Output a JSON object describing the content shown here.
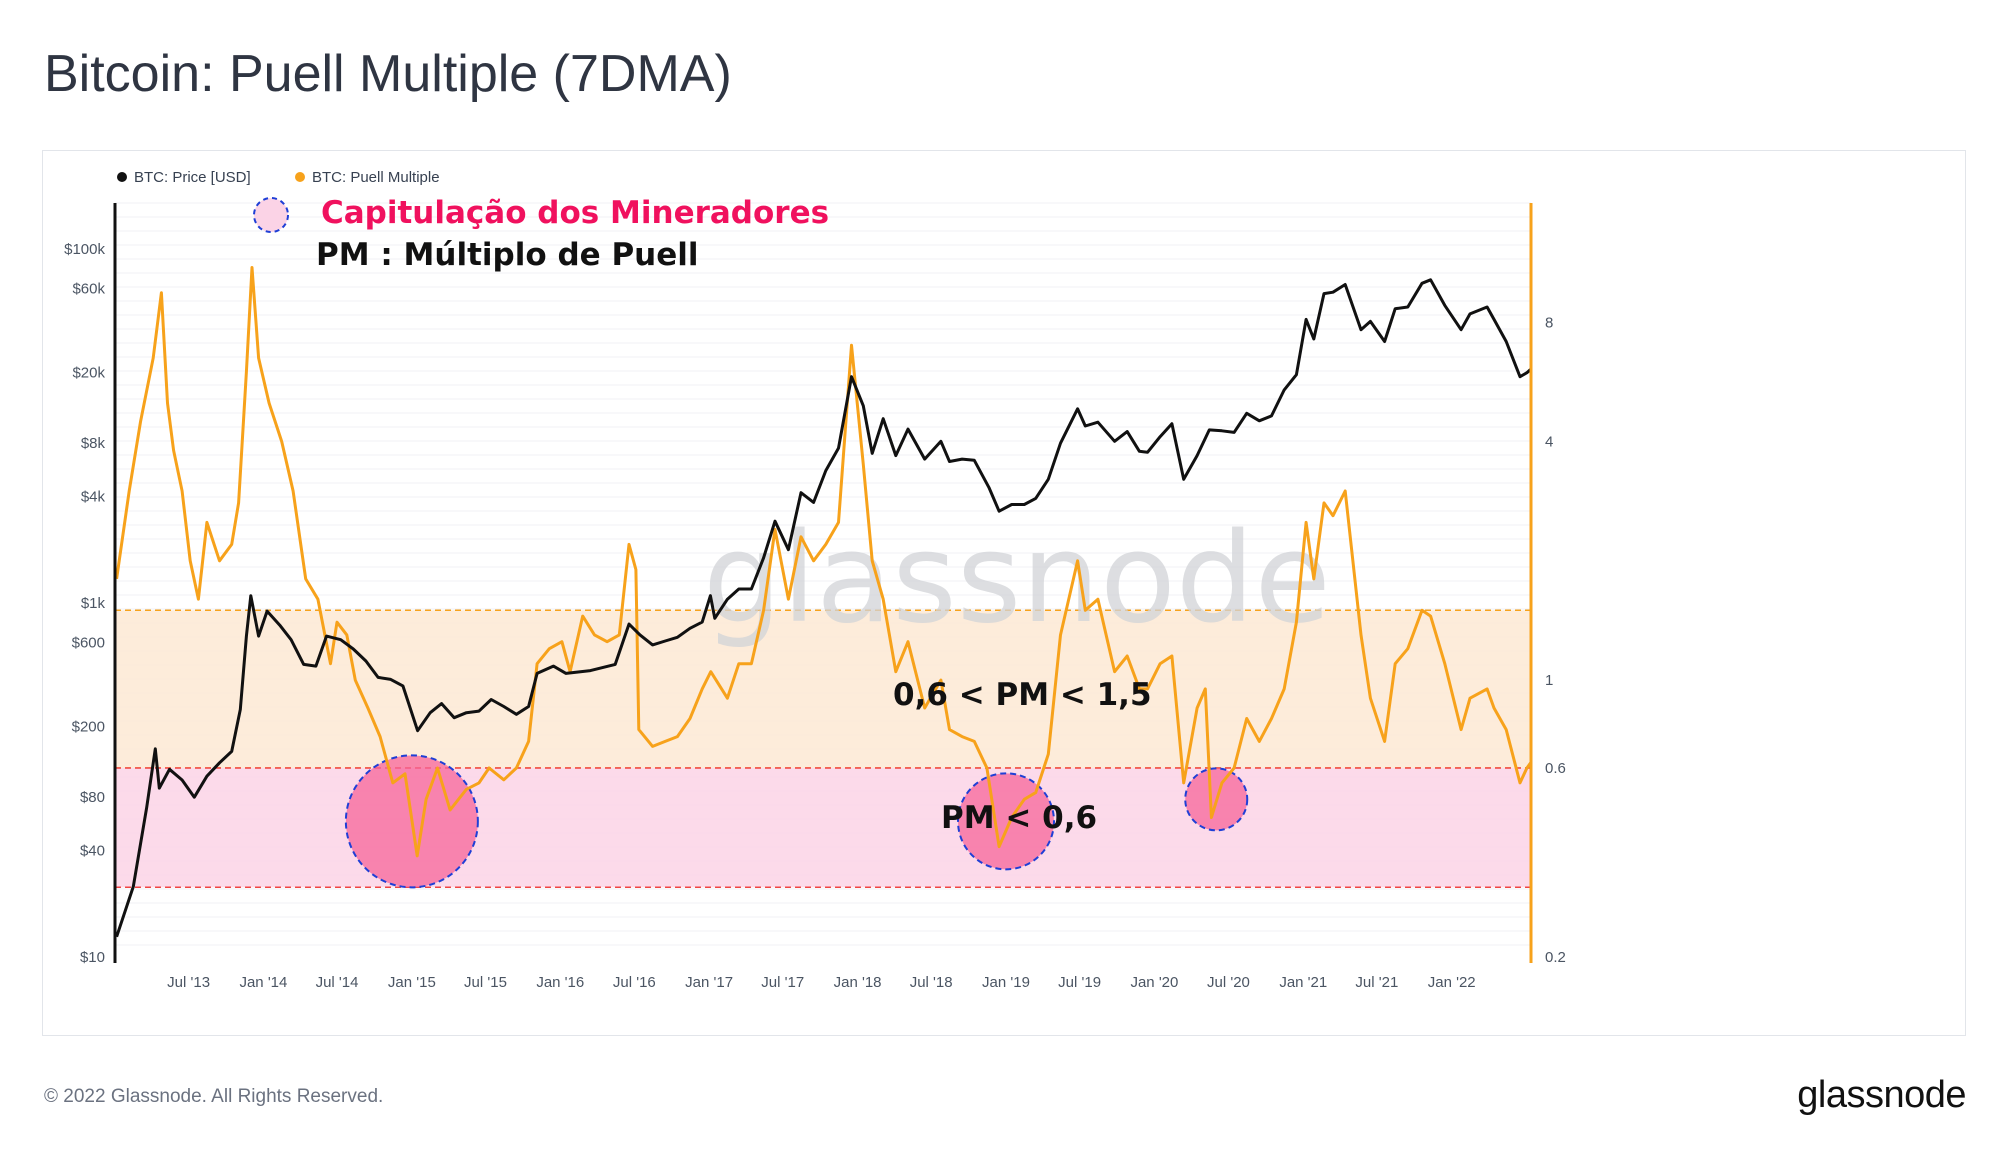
{
  "title": "Bitcoin: Puell Multiple (7DMA)",
  "footer": {
    "copyright": "© 2022 Glassnode. All Rights Reserved.",
    "logo": "glassnode"
  },
  "watermark": "glassnode",
  "legend": [
    {
      "label": "BTC: Price [USD]",
      "color": "#111111"
    },
    {
      "label": "BTC: Puell Multiple",
      "color": "#f7a21b"
    }
  ],
  "annotations": {
    "capitulation": "Capitulação dos Mineradores",
    "pm_definition": "PM : Múltiplo de Puell",
    "band_upper": "0,6 < PM < 1,5",
    "band_lower": "PM < 0,6"
  },
  "colors": {
    "price": "#111111",
    "puell": "#f7a21b",
    "band_upper": "#fde9d4",
    "band_lower": "#fbd3e6",
    "capitulation_fill": "#f7659a",
    "capitulation_border": "#1f3fd6",
    "annotation_pink": "#f0115e"
  },
  "chart_data": {
    "type": "line",
    "x_tick_labels": [
      "Jul '13",
      "Jan '14",
      "Jul '14",
      "Jan '15",
      "Jul '15",
      "Jan '16",
      "Jul '16",
      "Jan '17",
      "Jul '17",
      "Jan '18",
      "Jul '18",
      "Jan '19",
      "Jul '19",
      "Jan '20",
      "Jul '20",
      "Jan '21",
      "Jul '21",
      "Jan '22"
    ],
    "xlim": [
      "2013-01-01",
      "2022-07-15"
    ],
    "left_axis": {
      "label": "BTC: Price [USD]",
      "scale": "log",
      "ticks": [
        "$10",
        "$40",
        "$80",
        "$200",
        "$600",
        "$1k",
        "$4k",
        "$8k",
        "$20k",
        "$60k",
        "$100k"
      ],
      "tick_values": [
        10,
        40,
        80,
        200,
        600,
        1000,
        4000,
        8000,
        20000,
        60000,
        100000
      ]
    },
    "right_axis": {
      "label": "BTC: Puell Multiple",
      "scale": "log",
      "ticks": [
        "0.2",
        "0.6",
        "1",
        "4",
        "8"
      ],
      "tick_values": [
        0.2,
        0.6,
        1,
        4,
        8
      ],
      "range": [
        0.2,
        16
      ]
    },
    "bands": [
      {
        "label": "0,6 < PM < 1,5",
        "from": 0.6,
        "to": 1.5
      },
      {
        "label": "PM < 0,6",
        "from": 0.3,
        "to": 0.6
      }
    ],
    "capitulation_markers": [
      {
        "center_date": "2015-01-01",
        "puell": 0.44
      },
      {
        "center_date": "2019-01-01",
        "puell": 0.44
      },
      {
        "center_date": "2020-06-01",
        "puell": 0.5
      }
    ],
    "series": [
      {
        "name": "BTC: Price [USD]",
        "axis": "left",
        "points": [
          [
            "2013-01-05",
            13
          ],
          [
            "2013-02-15",
            25
          ],
          [
            "2013-03-20",
            70
          ],
          [
            "2013-04-10",
            150
          ],
          [
            "2013-04-20",
            90
          ],
          [
            "2013-05-15",
            115
          ],
          [
            "2013-06-15",
            100
          ],
          [
            "2013-07-15",
            80
          ],
          [
            "2013-08-15",
            105
          ],
          [
            "2013-09-15",
            125
          ],
          [
            "2013-10-15",
            145
          ],
          [
            "2013-11-05",
            250
          ],
          [
            "2013-11-20",
            650
          ],
          [
            "2013-12-01",
            1100
          ],
          [
            "2013-12-20",
            650
          ],
          [
            "2014-01-10",
            900
          ],
          [
            "2014-02-10",
            750
          ],
          [
            "2014-03-10",
            620
          ],
          [
            "2014-04-10",
            450
          ],
          [
            "2014-05-10",
            440
          ],
          [
            "2014-06-05",
            650
          ],
          [
            "2014-07-10",
            620
          ],
          [
            "2014-08-10",
            550
          ],
          [
            "2014-09-10",
            470
          ],
          [
            "2014-10-10",
            380
          ],
          [
            "2014-11-10",
            370
          ],
          [
            "2014-12-10",
            340
          ],
          [
            "2015-01-15",
            190
          ],
          [
            "2015-02-15",
            240
          ],
          [
            "2015-03-15",
            270
          ],
          [
            "2015-04-15",
            225
          ],
          [
            "2015-05-15",
            240
          ],
          [
            "2015-06-15",
            245
          ],
          [
            "2015-07-15",
            285
          ],
          [
            "2015-08-15",
            260
          ],
          [
            "2015-09-15",
            235
          ],
          [
            "2015-10-15",
            260
          ],
          [
            "2015-11-05",
            400
          ],
          [
            "2015-12-15",
            440
          ],
          [
            "2016-01-15",
            400
          ],
          [
            "2016-03-15",
            415
          ],
          [
            "2016-05-15",
            450
          ],
          [
            "2016-06-18",
            760
          ],
          [
            "2016-07-15",
            660
          ],
          [
            "2016-08-15",
            580
          ],
          [
            "2016-09-15",
            610
          ],
          [
            "2016-10-15",
            640
          ],
          [
            "2016-11-15",
            720
          ],
          [
            "2016-12-15",
            780
          ],
          [
            "2017-01-04",
            1100
          ],
          [
            "2017-01-15",
            820
          ],
          [
            "2017-02-15",
            1050
          ],
          [
            "2017-03-15",
            1200
          ],
          [
            "2017-04-15",
            1200
          ],
          [
            "2017-05-15",
            1800
          ],
          [
            "2017-06-12",
            2900
          ],
          [
            "2017-07-15",
            2000
          ],
          [
            "2017-08-15",
            4200
          ],
          [
            "2017-09-15",
            3700
          ],
          [
            "2017-10-15",
            5600
          ],
          [
            "2017-11-15",
            7500
          ],
          [
            "2017-12-17",
            19000
          ],
          [
            "2018-01-15",
            13000
          ],
          [
            "2018-02-06",
            7000
          ],
          [
            "2018-03-05",
            11000
          ],
          [
            "2018-04-05",
            6800
          ],
          [
            "2018-05-05",
            9600
          ],
          [
            "2018-06-15",
            6500
          ],
          [
            "2018-07-25",
            8200
          ],
          [
            "2018-08-15",
            6300
          ],
          [
            "2018-09-15",
            6500
          ],
          [
            "2018-10-15",
            6400
          ],
          [
            "2018-11-20",
            4500
          ],
          [
            "2018-12-15",
            3300
          ],
          [
            "2019-01-15",
            3600
          ],
          [
            "2019-02-15",
            3600
          ],
          [
            "2019-03-15",
            3900
          ],
          [
            "2019-04-15",
            5000
          ],
          [
            "2019-05-15",
            8000
          ],
          [
            "2019-06-26",
            12500
          ],
          [
            "2019-07-15",
            10000
          ],
          [
            "2019-08-15",
            10500
          ],
          [
            "2019-09-25",
            8200
          ],
          [
            "2019-10-26",
            9300
          ],
          [
            "2019-11-25",
            7200
          ],
          [
            "2019-12-15",
            7100
          ],
          [
            "2020-01-15",
            8700
          ],
          [
            "2020-02-13",
            10300
          ],
          [
            "2020-03-13",
            5000
          ],
          [
            "2020-04-15",
            6800
          ],
          [
            "2020-05-15",
            9500
          ],
          [
            "2020-06-15",
            9400
          ],
          [
            "2020-07-15",
            9200
          ],
          [
            "2020-08-15",
            11800
          ],
          [
            "2020-09-15",
            10700
          ],
          [
            "2020-10-15",
            11400
          ],
          [
            "2020-11-15",
            16000
          ],
          [
            "2020-12-15",
            19500
          ],
          [
            "2021-01-08",
            40000
          ],
          [
            "2021-01-27",
            31000
          ],
          [
            "2021-02-21",
            56000
          ],
          [
            "2021-03-15",
            57000
          ],
          [
            "2021-04-14",
            63000
          ],
          [
            "2021-05-23",
            35000
          ],
          [
            "2021-06-15",
            39000
          ],
          [
            "2021-07-20",
            30000
          ],
          [
            "2021-08-15",
            46000
          ],
          [
            "2021-09-15",
            47000
          ],
          [
            "2021-10-20",
            64000
          ],
          [
            "2021-11-10",
            67000
          ],
          [
            "2021-12-15",
            48000
          ],
          [
            "2022-01-24",
            35000
          ],
          [
            "2022-02-15",
            43000
          ],
          [
            "2022-03-29",
            47000
          ],
          [
            "2022-04-15",
            40000
          ],
          [
            "2022-05-15",
            30000
          ],
          [
            "2022-06-18",
            19000
          ],
          [
            "2022-07-05",
            20000
          ],
          [
            "2022-07-15",
            21000
          ]
        ]
      },
      {
        "name": "BTC: Puell Multiple",
        "axis": "right",
        "points": [
          [
            "2013-01-05",
            1.8
          ],
          [
            "2013-02-05",
            3.0
          ],
          [
            "2013-03-05",
            4.5
          ],
          [
            "2013-04-05",
            6.5
          ],
          [
            "2013-04-25",
            9.5
          ],
          [
            "2013-05-10",
            5.0
          ],
          [
            "2013-05-25",
            3.8
          ],
          [
            "2013-06-15",
            3.0
          ],
          [
            "2013-07-05",
            2.0
          ],
          [
            "2013-07-25",
            1.6
          ],
          [
            "2013-08-15",
            2.5
          ],
          [
            "2013-09-15",
            2.0
          ],
          [
            "2013-10-15",
            2.2
          ],
          [
            "2013-11-01",
            2.8
          ],
          [
            "2013-11-20",
            6.0
          ],
          [
            "2013-12-04",
            11.0
          ],
          [
            "2013-12-20",
            6.5
          ],
          [
            "2014-01-15",
            5.0
          ],
          [
            "2014-02-15",
            4.0
          ],
          [
            "2014-03-15",
            3.0
          ],
          [
            "2014-04-15",
            1.8
          ],
          [
            "2014-05-15",
            1.6
          ],
          [
            "2014-06-15",
            1.1
          ],
          [
            "2014-07-01",
            1.4
          ],
          [
            "2014-07-25",
            1.3
          ],
          [
            "2014-08-15",
            1.0
          ],
          [
            "2014-09-15",
            0.85
          ],
          [
            "2014-10-15",
            0.72
          ],
          [
            "2014-11-15",
            0.55
          ],
          [
            "2014-12-15",
            0.58
          ],
          [
            "2015-01-14",
            0.36
          ],
          [
            "2015-02-05",
            0.5
          ],
          [
            "2015-03-05",
            0.6
          ],
          [
            "2015-04-05",
            0.47
          ],
          [
            "2015-05-15",
            0.53
          ],
          [
            "2015-06-15",
            0.55
          ],
          [
            "2015-07-10",
            0.6
          ],
          [
            "2015-08-15",
            0.56
          ],
          [
            "2015-09-15",
            0.6
          ],
          [
            "2015-10-15",
            0.7
          ],
          [
            "2015-11-05",
            1.1
          ],
          [
            "2015-12-05",
            1.2
          ],
          [
            "2016-01-05",
            1.25
          ],
          [
            "2016-01-25",
            1.05
          ],
          [
            "2016-02-25",
            1.45
          ],
          [
            "2016-03-25",
            1.3
          ],
          [
            "2016-04-25",
            1.25
          ],
          [
            "2016-05-25",
            1.3
          ],
          [
            "2016-06-18",
            2.2
          ],
          [
            "2016-07-05",
            1.9
          ],
          [
            "2016-07-12",
            0.75
          ],
          [
            "2016-08-15",
            0.68
          ],
          [
            "2016-09-15",
            0.7
          ],
          [
            "2016-10-15",
            0.72
          ],
          [
            "2016-11-15",
            0.8
          ],
          [
            "2016-12-15",
            0.95
          ],
          [
            "2017-01-05",
            1.05
          ],
          [
            "2017-02-15",
            0.9
          ],
          [
            "2017-03-15",
            1.1
          ],
          [
            "2017-04-15",
            1.1
          ],
          [
            "2017-05-15",
            1.5
          ],
          [
            "2017-06-12",
            2.4
          ],
          [
            "2017-07-15",
            1.6
          ],
          [
            "2017-08-15",
            2.3
          ],
          [
            "2017-09-15",
            2.0
          ],
          [
            "2017-10-15",
            2.2
          ],
          [
            "2017-11-15",
            2.5
          ],
          [
            "2017-12-17",
            7.0
          ],
          [
            "2018-01-15",
            3.5
          ],
          [
            "2018-02-06",
            2.0
          ],
          [
            "2018-03-05",
            1.6
          ],
          [
            "2018-04-05",
            1.05
          ],
          [
            "2018-05-05",
            1.25
          ],
          [
            "2018-06-15",
            0.85
          ],
          [
            "2018-07-25",
            1.0
          ],
          [
            "2018-08-15",
            0.75
          ],
          [
            "2018-09-15",
            0.72
          ],
          [
            "2018-10-15",
            0.7
          ],
          [
            "2018-11-15",
            0.6
          ],
          [
            "2018-12-15",
            0.38
          ],
          [
            "2019-01-15",
            0.45
          ],
          [
            "2019-02-15",
            0.5
          ],
          [
            "2019-03-15",
            0.52
          ],
          [
            "2019-04-15",
            0.65
          ],
          [
            "2019-05-15",
            1.3
          ],
          [
            "2019-06-26",
            2.0
          ],
          [
            "2019-07-15",
            1.5
          ],
          [
            "2019-08-15",
            1.6
          ],
          [
            "2019-09-25",
            1.05
          ],
          [
            "2019-10-26",
            1.15
          ],
          [
            "2019-11-25",
            0.95
          ],
          [
            "2019-12-15",
            0.95
          ],
          [
            "2020-01-15",
            1.1
          ],
          [
            "2020-02-13",
            1.15
          ],
          [
            "2020-03-13",
            0.55
          ],
          [
            "2020-04-15",
            0.85
          ],
          [
            "2020-05-05",
            0.95
          ],
          [
            "2020-05-20",
            0.45
          ],
          [
            "2020-06-15",
            0.55
          ],
          [
            "2020-07-15",
            0.6
          ],
          [
            "2020-08-15",
            0.8
          ],
          [
            "2020-09-15",
            0.7
          ],
          [
            "2020-10-15",
            0.8
          ],
          [
            "2020-11-15",
            0.95
          ],
          [
            "2020-12-15",
            1.4
          ],
          [
            "2021-01-08",
            2.5
          ],
          [
            "2021-01-27",
            1.8
          ],
          [
            "2021-02-21",
            2.8
          ],
          [
            "2021-03-15",
            2.6
          ],
          [
            "2021-04-14",
            3.0
          ],
          [
            "2021-05-23",
            1.3
          ],
          [
            "2021-06-15",
            0.9
          ],
          [
            "2021-07-20",
            0.7
          ],
          [
            "2021-08-15",
            1.1
          ],
          [
            "2021-09-15",
            1.2
          ],
          [
            "2021-10-20",
            1.5
          ],
          [
            "2021-11-10",
            1.45
          ],
          [
            "2021-12-15",
            1.1
          ],
          [
            "2022-01-24",
            0.75
          ],
          [
            "2022-02-15",
            0.9
          ],
          [
            "2022-03-29",
            0.95
          ],
          [
            "2022-04-15",
            0.85
          ],
          [
            "2022-05-15",
            0.75
          ],
          [
            "2022-06-18",
            0.55
          ],
          [
            "2022-07-05",
            0.6
          ],
          [
            "2022-07-15",
            0.62
          ]
        ]
      }
    ]
  }
}
